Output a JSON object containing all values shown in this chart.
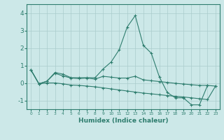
{
  "xlabel": "Humidex (Indice chaleur)",
  "x": [
    0,
    1,
    2,
    3,
    4,
    5,
    6,
    7,
    8,
    9,
    10,
    11,
    12,
    13,
    14,
    15,
    16,
    17,
    18,
    19,
    20,
    21,
    22,
    23
  ],
  "line1": [
    0.75,
    -0.05,
    0.1,
    0.6,
    0.5,
    0.3,
    0.3,
    0.3,
    0.3,
    0.8,
    1.2,
    1.9,
    3.2,
    3.85,
    2.15,
    1.7,
    0.35,
    -0.55,
    -0.85,
    -0.85,
    -1.25,
    -1.25,
    -0.15,
    null
  ],
  "line2": [
    0.75,
    -0.05,
    0.1,
    0.55,
    0.4,
    0.28,
    0.25,
    0.28,
    0.22,
    0.38,
    0.33,
    0.28,
    0.28,
    0.38,
    0.18,
    0.13,
    0.08,
    0.03,
    -0.02,
    -0.06,
    -0.1,
    -0.14,
    -0.14,
    -0.18
  ],
  "line3": [
    0.75,
    -0.05,
    0.0,
    0.0,
    -0.05,
    -0.12,
    -0.14,
    -0.18,
    -0.22,
    -0.28,
    -0.34,
    -0.4,
    -0.46,
    -0.52,
    -0.58,
    -0.62,
    -0.67,
    -0.72,
    -0.76,
    -0.8,
    -0.85,
    -0.9,
    -0.95,
    -0.18
  ],
  "line_color": "#2e7d6e",
  "background_color": "#cce8e8",
  "grid_color": "#aacccc",
  "ylim": [
    -1.5,
    4.5
  ],
  "xlim": [
    -0.5,
    23.5
  ],
  "yticks": [
    -1,
    0,
    1,
    2,
    3,
    4
  ],
  "ytick_labels": [
    "-1",
    "0",
    "1",
    "2",
    "3",
    "4"
  ]
}
